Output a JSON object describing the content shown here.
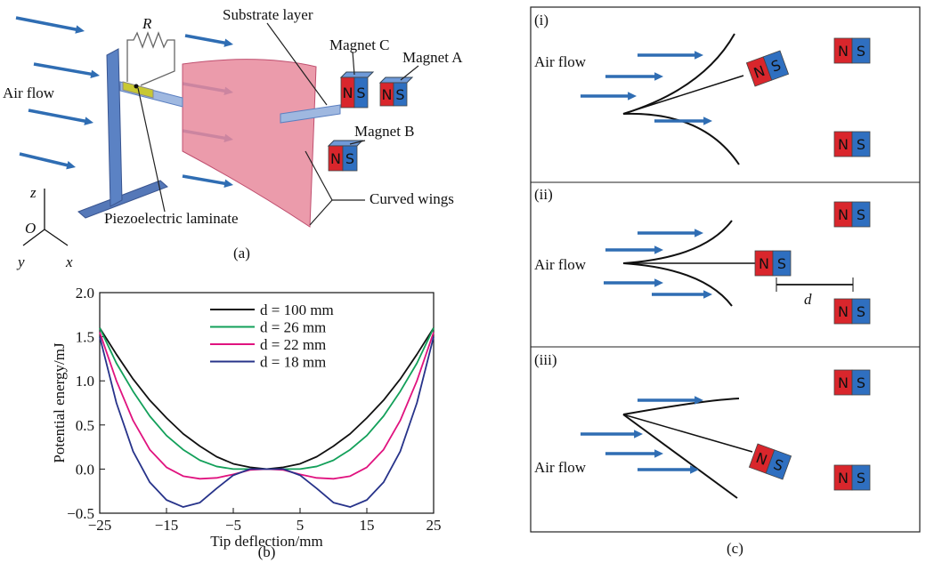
{
  "chart_data": {
    "type": "line",
    "x_label": "Tip deflection/mm",
    "y_label": "Potential energy/mJ",
    "panel_label": "(b)",
    "x": [
      -25,
      -22.5,
      -20,
      -17.5,
      -15,
      -12.5,
      -10,
      -7.5,
      -5,
      -2.5,
      0,
      2.5,
      5,
      7.5,
      10,
      12.5,
      15,
      17.5,
      20,
      22.5,
      25
    ],
    "series": [
      {
        "name": "d = 100 mm",
        "color": "#111111",
        "values": [
          1.6,
          1.3,
          1.02,
          0.78,
          0.58,
          0.4,
          0.26,
          0.14,
          0.06,
          0.02,
          0,
          0.02,
          0.06,
          0.14,
          0.26,
          0.4,
          0.58,
          0.78,
          1.02,
          1.3,
          1.6
        ]
      },
      {
        "name": "d = 26 mm",
        "color": "#13a05a",
        "values": [
          1.6,
          1.2,
          0.88,
          0.6,
          0.38,
          0.22,
          0.1,
          0.03,
          0.0,
          0.0,
          0,
          0.0,
          0.0,
          0.03,
          0.1,
          0.22,
          0.38,
          0.6,
          0.88,
          1.2,
          1.6
        ]
      },
      {
        "name": "d = 22 mm",
        "color": "#e0137f",
        "values": [
          1.55,
          1.0,
          0.55,
          0.22,
          0.02,
          -0.08,
          -0.11,
          -0.1,
          -0.06,
          -0.01,
          0,
          -0.01,
          -0.06,
          -0.1,
          -0.11,
          -0.08,
          0.02,
          0.22,
          0.55,
          1.0,
          1.55
        ]
      },
      {
        "name": "d = 18 mm",
        "color": "#27338a",
        "values": [
          1.5,
          0.75,
          0.2,
          -0.15,
          -0.35,
          -0.43,
          -0.38,
          -0.22,
          -0.07,
          0.0,
          0,
          0.0,
          -0.07,
          -0.22,
          -0.38,
          -0.43,
          -0.35,
          -0.15,
          0.2,
          0.75,
          1.5
        ]
      }
    ],
    "xlim": [
      -25,
      25
    ],
    "xticks": [
      {
        "value": -25,
        "label": "−25"
      },
      {
        "value": -15,
        "label": "−15"
      },
      {
        "value": -5,
        "label": "−5"
      },
      5,
      15,
      25
    ],
    "ylim": [
      -0.5,
      2.0
    ],
    "yticks": [
      {
        "value": -0.5,
        "label": "−0.5"
      },
      {
        "value": 0,
        "label": "0.0"
      },
      0.5,
      {
        "value": 1,
        "label": "1.0"
      },
      1.5,
      {
        "value": 2,
        "label": "2.0"
      }
    ],
    "legend": "upper-left"
  },
  "panel_a": {
    "resistor": "R",
    "substrate": "Substrate layer",
    "magnet_c": "Magnet C",
    "magnet_a": "Magnet A",
    "magnet_b": "Magnet B",
    "air_flow": "Air flow",
    "curved_wings": "Curved wings",
    "piezo": "Piezoelectric laminate",
    "axis_z": "z",
    "axis_o": "O",
    "axis_y": "y",
    "axis_x": "x",
    "label": "(a)"
  },
  "magnet": {
    "n": "N",
    "s": "S"
  },
  "panel_c": {
    "label": "(c)",
    "gap": "d",
    "states": [
      {
        "label": "(i)",
        "air_flow": "Air flow"
      },
      {
        "label": "(ii)",
        "air_flow": "Air flow"
      },
      {
        "label": "(iii)",
        "air_flow": "Air flow"
      }
    ]
  }
}
